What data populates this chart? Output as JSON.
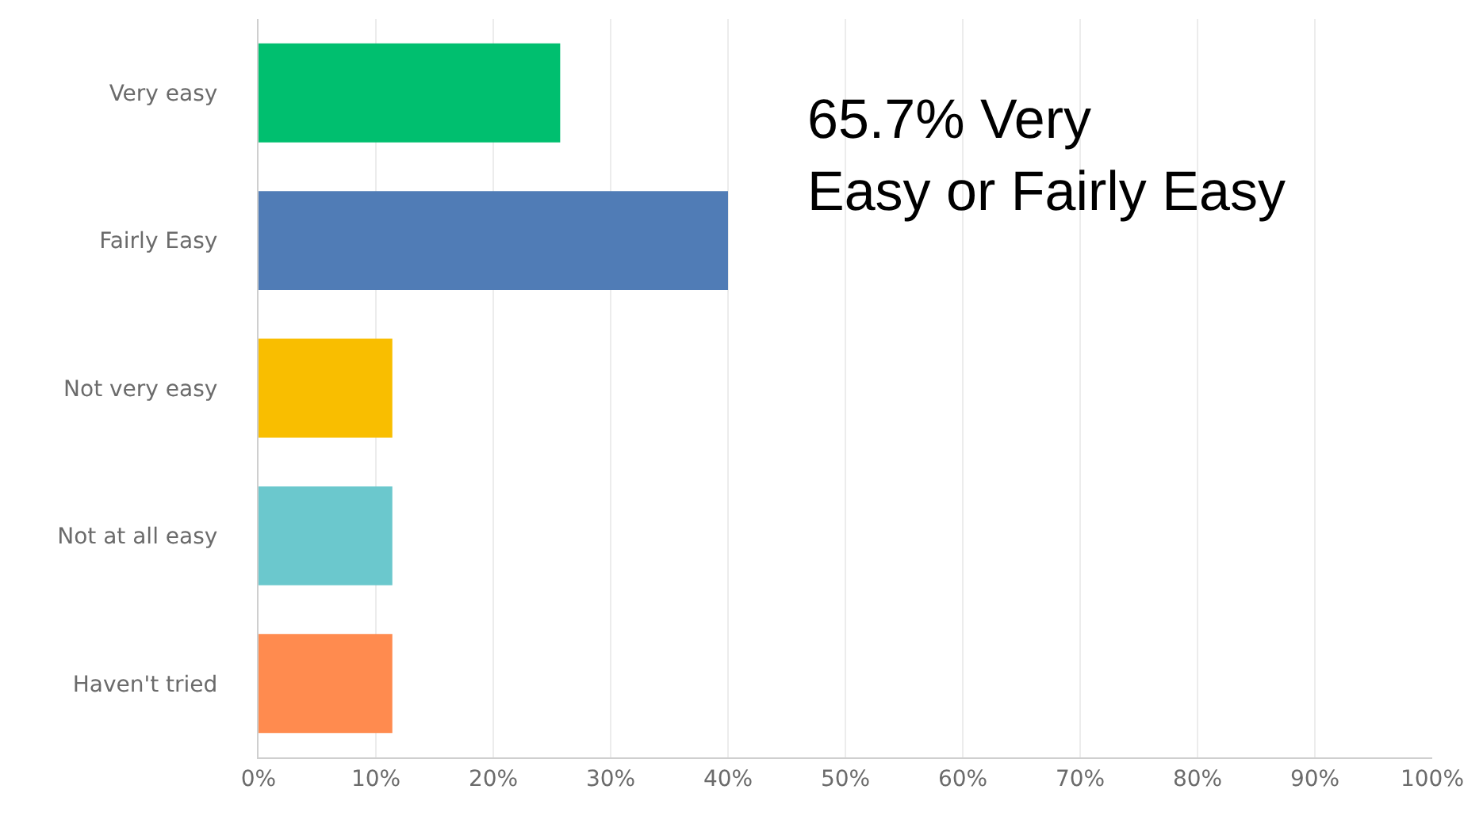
{
  "chart_data": {
    "type": "bar",
    "orientation": "horizontal",
    "categories": [
      "Very easy",
      "Fairly Easy",
      "Not very easy",
      "Not at all easy",
      "Haven't tried"
    ],
    "values": [
      25.7,
      40.0,
      11.4,
      11.4,
      11.4
    ],
    "colors": [
      "#00bf6f",
      "#507cb6",
      "#f9be00",
      "#6bc8cd",
      "#ff8b4f"
    ],
    "xlim": [
      0,
      100
    ],
    "xticks": [
      {
        "value": 0,
        "label": "0%"
      },
      {
        "value": 10,
        "label": "10%"
      },
      {
        "value": 20,
        "label": "20%"
      },
      {
        "value": 30,
        "label": "30%"
      },
      {
        "value": 40,
        "label": "40%"
      },
      {
        "value": 50,
        "label": "50%"
      },
      {
        "value": 60,
        "label": "60%"
      },
      {
        "value": 70,
        "label": "70%"
      },
      {
        "value": 80,
        "label": "80%"
      },
      {
        "value": 90,
        "label": "90%"
      },
      {
        "value": 100,
        "label": "100%"
      }
    ],
    "grid": "x",
    "annotations": [
      "65.7% Very\nEasy or Fairly Easy"
    ]
  }
}
